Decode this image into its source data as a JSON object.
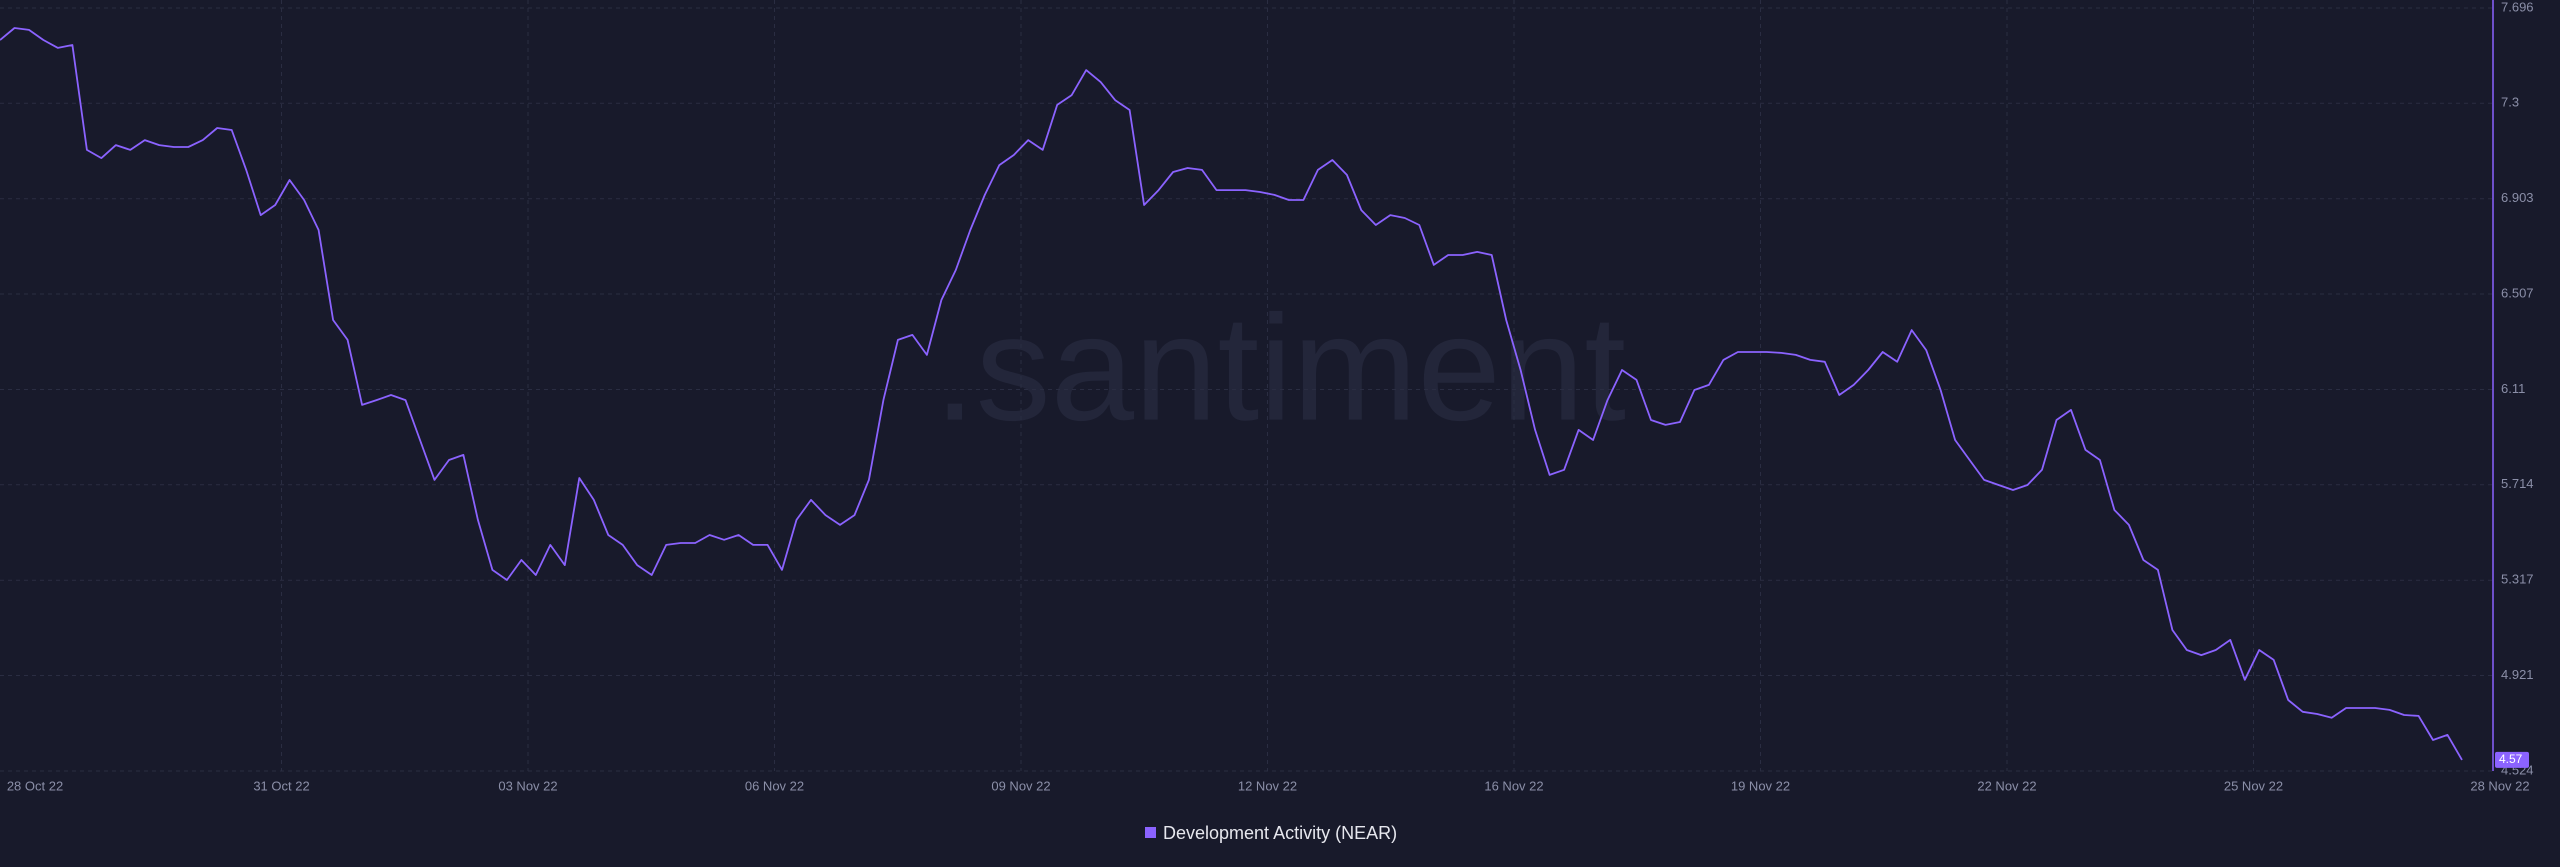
{
  "chart_data": {
    "type": "line",
    "watermark": ".santiment",
    "x_tick_labels": [
      "28 Oct 22",
      "31 Oct 22",
      "03 Nov 22",
      "06 Nov 22",
      "09 Nov 22",
      "12 Nov 22",
      "16 Nov 22",
      "19 Nov 22",
      "22 Nov 22",
      "25 Nov 22",
      "28 Nov 22"
    ],
    "ylim": [
      4.524,
      7.696
    ],
    "yticks": [
      4.524,
      4.921,
      5.317,
      5.714,
      6.11,
      6.507,
      6.903,
      7.3,
      7.696
    ],
    "grid": true,
    "series": [
      {
        "name": "Development Activity (NEAR)",
        "color": "#8b63ff",
        "values": [
          7.563,
          7.613,
          7.605,
          7.563,
          7.53,
          7.542,
          7.106,
          7.072,
          7.126,
          7.106,
          7.147,
          7.126,
          7.118,
          7.118,
          7.147,
          7.197,
          7.189,
          7.023,
          6.835,
          6.877,
          6.981,
          6.898,
          6.773,
          6.399,
          6.316,
          6.046,
          6.066,
          6.087,
          6.066,
          5.9,
          5.734,
          5.817,
          5.838,
          5.568,
          5.36,
          5.318,
          5.401,
          5.339,
          5.464,
          5.38,
          5.742,
          5.651,
          5.505,
          5.464,
          5.38,
          5.339,
          5.464,
          5.472,
          5.472,
          5.505,
          5.485,
          5.505,
          5.464,
          5.464,
          5.36,
          5.568,
          5.651,
          5.588,
          5.547,
          5.588,
          5.734,
          6.066,
          6.316,
          6.337,
          6.254,
          6.482,
          6.607,
          6.773,
          6.919,
          7.043,
          7.085,
          7.147,
          7.106,
          7.293,
          7.334,
          7.438,
          7.388,
          7.313,
          7.272,
          6.877,
          6.939,
          7.014,
          7.031,
          7.023,
          6.939,
          6.939,
          6.939,
          6.931,
          6.919,
          6.898,
          6.898,
          7.023,
          7.064,
          7.002,
          6.856,
          6.794,
          6.835,
          6.823,
          6.794,
          6.628,
          6.669,
          6.669,
          6.682,
          6.669,
          6.399,
          6.191,
          5.942,
          5.755,
          5.776,
          5.942,
          5.9,
          6.066,
          6.191,
          6.15,
          5.983,
          5.963,
          5.975,
          6.108,
          6.129,
          6.233,
          6.266,
          6.266,
          6.266,
          6.262,
          6.254,
          6.233,
          6.225,
          6.087,
          6.129,
          6.191,
          6.266,
          6.225,
          6.357,
          6.274,
          6.108,
          5.9,
          5.817,
          5.734,
          5.713,
          5.692,
          5.713,
          5.776,
          5.983,
          6.025,
          5.859,
          5.817,
          5.609,
          5.547,
          5.401,
          5.36,
          5.11,
          5.027,
          5.006,
          5.027,
          5.069,
          4.903,
          5.027,
          4.986,
          4.819,
          4.77,
          4.761,
          4.745,
          4.786,
          4.786,
          4.786,
          4.778,
          4.757,
          4.753,
          4.653,
          4.674,
          4.57
        ]
      }
    ]
  }
}
